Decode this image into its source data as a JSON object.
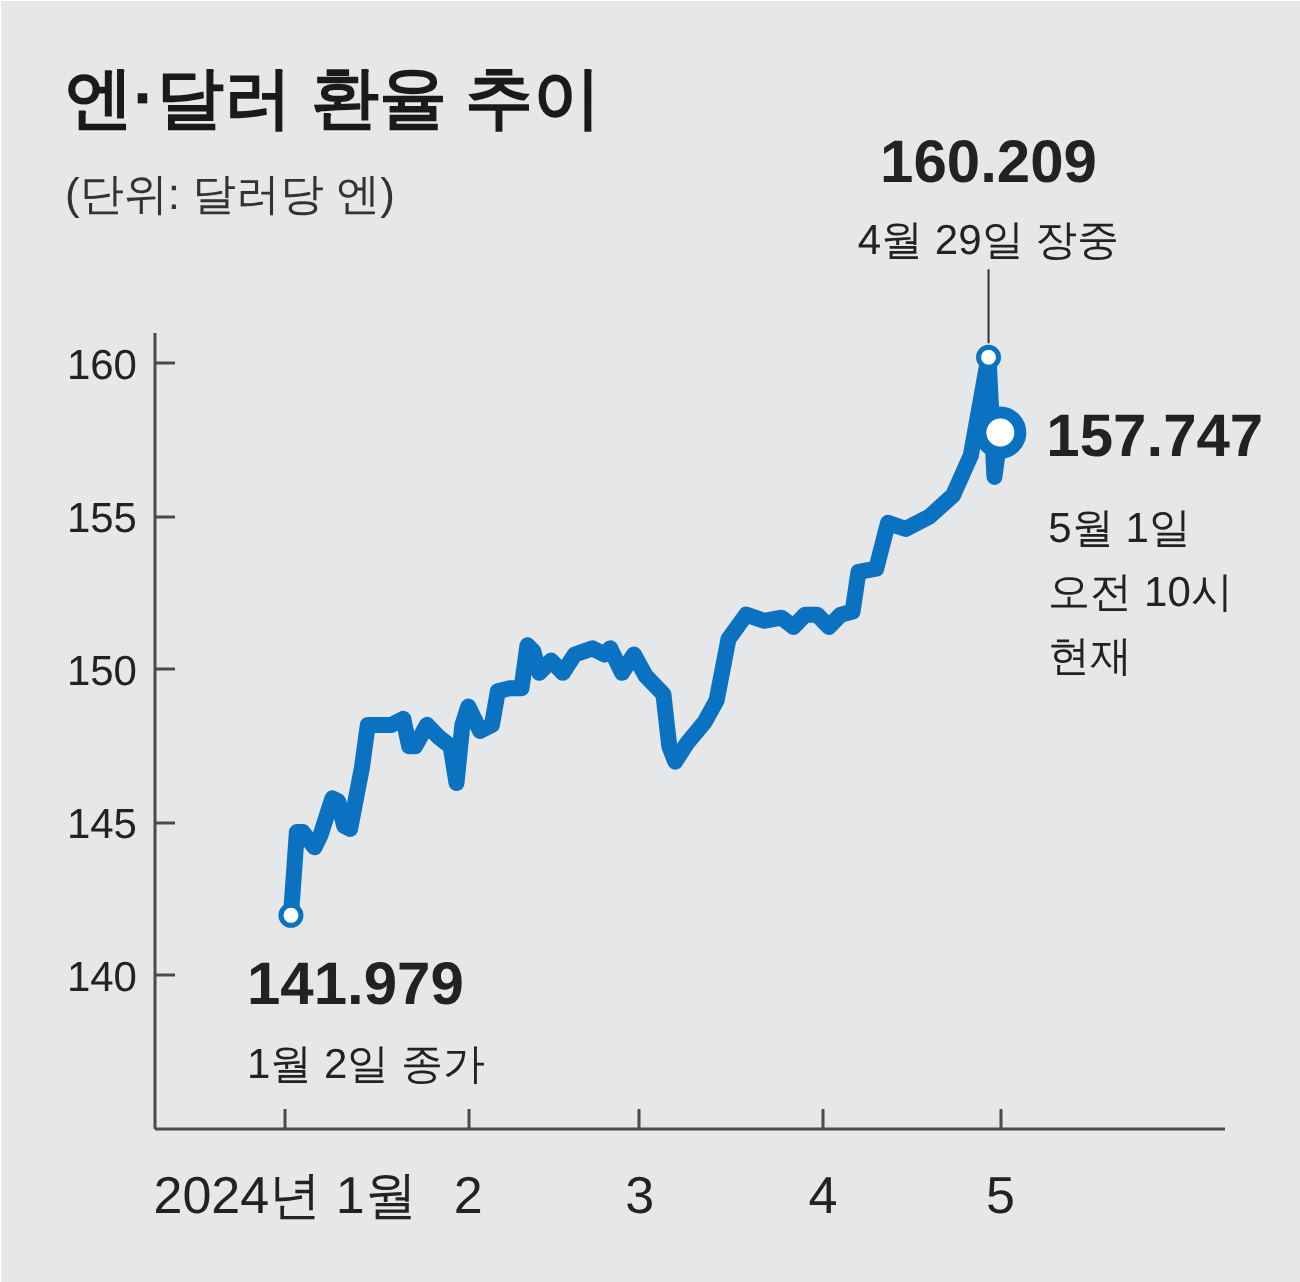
{
  "chart_data": {
    "type": "line",
    "title": "엔·달러 환율 추이",
    "subtitle": "(단위: 달러당 엔)",
    "x": [
      "2024-01-02",
      "2024-01-03",
      "2024-01-04",
      "2024-01-06",
      "2024-01-07",
      "2024-01-09",
      "2024-01-10",
      "2024-01-11",
      "2024-01-12",
      "2024-01-14",
      "2024-01-15",
      "2024-01-19",
      "2024-01-21",
      "2024-01-22",
      "2024-01-23",
      "2024-01-25",
      "2024-01-27",
      "2024-01-29",
      "2024-01-30",
      "2024-01-31",
      "2024-02-01",
      "2024-02-03",
      "2024-02-05",
      "2024-02-06",
      "2024-02-08",
      "2024-02-10",
      "2024-02-11",
      "2024-02-12",
      "2024-02-13",
      "2024-02-15",
      "2024-02-17",
      "2024-02-19",
      "2024-02-22",
      "2024-02-24",
      "2024-02-25",
      "2024-02-27",
      "2024-02-29",
      "2024-03-02",
      "2024-03-05",
      "2024-03-06",
      "2024-03-07",
      "2024-03-09",
      "2024-03-12",
      "2024-03-14",
      "2024-03-16",
      "2024-03-19",
      "2024-03-22",
      "2024-03-25",
      "2024-03-27",
      "2024-03-29",
      "2024-03-31",
      "2024-04-02",
      "2024-04-04",
      "2024-04-06",
      "2024-04-07",
      "2024-04-10",
      "2024-04-12",
      "2024-04-15",
      "2024-04-19",
      "2024-04-23",
      "2024-04-26",
      "2024-04-29",
      "2024-04-30",
      "2024-05-01"
    ],
    "series": [
      {
        "color": "#0b72c1",
        "values": [
          141.979,
          144.7,
          144.7,
          144.2,
          144.6,
          145.8,
          145.7,
          144.9,
          144.8,
          146.8,
          148.2,
          148.2,
          148.4,
          147.5,
          147.5,
          148.2,
          147.8,
          147.5,
          146.3,
          148.2,
          148.8,
          148.0,
          148.2,
          149.3,
          149.4,
          149.4,
          150.8,
          150.6,
          149.9,
          150.3,
          149.9,
          150.5,
          150.7,
          150.5,
          150.7,
          149.9,
          150.5,
          149.8,
          149.2,
          147.5,
          147.0,
          147.6,
          148.3,
          149.0,
          151.0,
          151.8,
          151.6,
          151.7,
          151.4,
          151.8,
          151.8,
          151.4,
          151.8,
          151.9,
          153.2,
          153.3,
          154.8,
          154.6,
          155.0,
          155.7,
          157.0,
          160.209,
          156.3,
          157.747
        ]
      }
    ],
    "xlim": [
      "2023-12-10",
      "2024-06-08"
    ],
    "xticks": [
      {
        "value": "2024-01-01",
        "label": "2024년 1월"
      },
      {
        "value": "2024-02-01",
        "label": "2"
      },
      {
        "value": "2024-03-01",
        "label": "3"
      },
      {
        "value": "2024-04-01",
        "label": "4"
      },
      {
        "value": "2024-05-01",
        "label": "5"
      }
    ],
    "ylim": [
      135,
      161
    ],
    "yticks": [
      140,
      145,
      150,
      155,
      160
    ],
    "annotations": [
      {
        "text": "141.979\n1월 2일 종가",
        "x": "2024-01-02",
        "y": 141.979
      },
      {
        "text": "160.209\n4월 29일 장중",
        "x": "2024-04-29",
        "y": 160.209
      },
      {
        "text": "157.747\n5월 1일\n오전 10시\n현재",
        "x": "2024-05-01",
        "y": 157.747
      }
    ]
  }
}
